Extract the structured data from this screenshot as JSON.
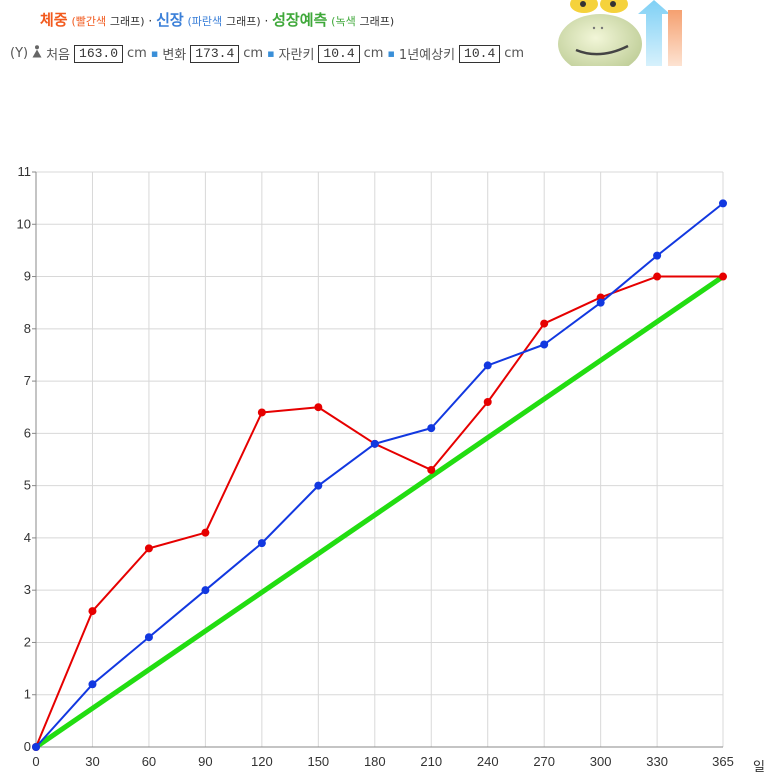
{
  "legend": {
    "weight_label": "체중",
    "weight_note": "(빨간색",
    "graph_word_1": "그래프)",
    "height_label": "신장",
    "height_note": "(파란색",
    "graph_word_2": "그래프)",
    "growth_label": "성장예측",
    "growth_note": "(녹색",
    "graph_word_3": "그래프)"
  },
  "info": {
    "y_label": "(Y)",
    "start_label": "처음",
    "start_value": "163.0",
    "unit1": "cm",
    "change_label": "변화",
    "change_value": "173.4",
    "unit2": "cm",
    "grown_label": "자란키",
    "grown_value": "10.4",
    "unit3": "cm",
    "yearly_label": "1년예상키",
    "yearly_value": "10.4",
    "unit4": "cm"
  },
  "colors": {
    "weight": "#e60000",
    "height": "#1238e0",
    "growth": "#22dd11",
    "grid": "#d8d8d8",
    "axis": "#888888"
  },
  "chart_data": {
    "type": "line",
    "x": [
      0,
      30,
      60,
      90,
      120,
      150,
      180,
      210,
      240,
      270,
      300,
      330,
      365
    ],
    "xticks": [
      "0",
      "30",
      "60",
      "90",
      "120",
      "150",
      "180",
      "210",
      "240",
      "270",
      "300",
      "330",
      "365"
    ],
    "yticks": [
      "0",
      "1",
      "2",
      "3",
      "4",
      "5",
      "6",
      "7",
      "8",
      "9",
      "10",
      "11"
    ],
    "xlim": [
      0,
      365
    ],
    "ylim": [
      0,
      11
    ],
    "xlabel": "일",
    "grid": true,
    "series": [
      {
        "key": "weight",
        "values": [
          0,
          2.6,
          3.8,
          4.1,
          6.4,
          6.5,
          5.8,
          5.3,
          6.6,
          8.1,
          8.6,
          9.0,
          9.0
        ]
      },
      {
        "key": "height",
        "values": [
          0,
          1.2,
          2.1,
          3.0,
          3.9,
          5.0,
          5.8,
          6.1,
          7.3,
          7.7,
          8.5,
          9.4,
          10.4
        ]
      },
      {
        "key": "growth",
        "x": [
          0,
          365
        ],
        "values": [
          0,
          9.0
        ]
      }
    ]
  }
}
